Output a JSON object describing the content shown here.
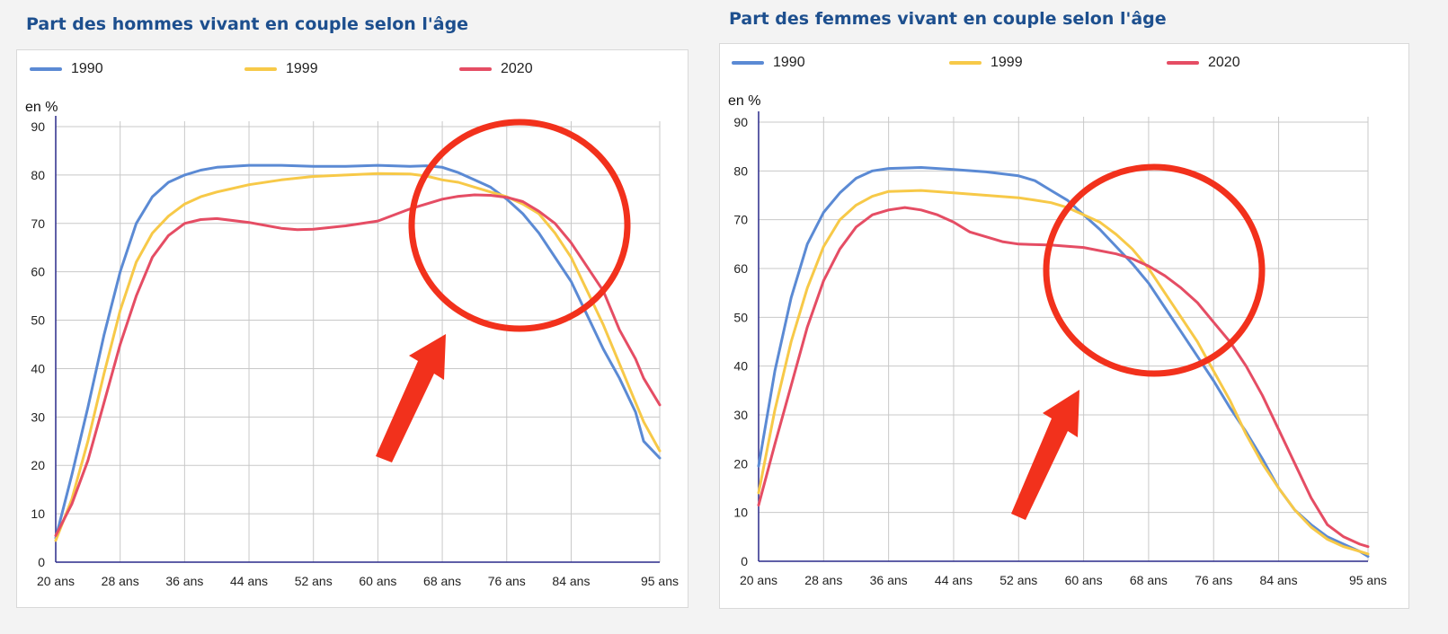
{
  "colors": {
    "s1990": "#5b8ad4",
    "s1999": "#f7c948",
    "s2020": "#e54d64",
    "annotation": "#f2311c"
  },
  "chart_data": [
    {
      "type": "line",
      "title": "Part des hommes vivant en couple selon l'âge",
      "ylabel": "en %",
      "ylim": [
        0,
        90
      ],
      "yticks": [
        "0",
        "10",
        "20",
        "30",
        "40",
        "50",
        "60",
        "70",
        "80",
        "90"
      ],
      "xlim": [
        20,
        95
      ],
      "xticks": [
        "20 ans",
        "28 ans",
        "36 ans",
        "44 ans",
        "52 ans",
        "60 ans",
        "68 ans",
        "76 ans",
        "84 ans",
        "95 ans"
      ],
      "legend": [
        "1990",
        "1999",
        "2020"
      ],
      "grid": true,
      "series": [
        {
          "name": "1990",
          "points": [
            [
              20,
              5
            ],
            [
              22,
              18
            ],
            [
              24,
              32
            ],
            [
              26,
              47
            ],
            [
              28,
              60
            ],
            [
              30,
              70
            ],
            [
              32,
              75.5
            ],
            [
              34,
              78.5
            ],
            [
              36,
              80
            ],
            [
              38,
              81
            ],
            [
              40,
              81.6
            ],
            [
              44,
              82
            ],
            [
              48,
              82
            ],
            [
              52,
              81.8
            ],
            [
              56,
              81.8
            ],
            [
              60,
              82
            ],
            [
              64,
              81.8
            ],
            [
              66,
              81.9
            ],
            [
              68,
              81.6
            ],
            [
              70,
              80.5
            ],
            [
              72,
              79
            ],
            [
              74,
              77.5
            ],
            [
              76,
              75
            ],
            [
              78,
              72
            ],
            [
              80,
              68
            ],
            [
              82,
              63
            ],
            [
              84,
              58
            ],
            [
              86,
              51
            ],
            [
              88,
              44
            ],
            [
              90,
              38
            ],
            [
              92,
              31
            ],
            [
              93,
              25
            ],
            [
              95,
              21.5
            ]
          ]
        },
        {
          "name": "1999",
          "points": [
            [
              20,
              4.5
            ],
            [
              22,
              13
            ],
            [
              24,
              25
            ],
            [
              26,
              39
            ],
            [
              28,
              52
            ],
            [
              30,
              62
            ],
            [
              32,
              68
            ],
            [
              34,
              71.5
            ],
            [
              36,
              74
            ],
            [
              38,
              75.5
            ],
            [
              40,
              76.5
            ],
            [
              44,
              78
            ],
            [
              48,
              79
            ],
            [
              52,
              79.7
            ],
            [
              56,
              80
            ],
            [
              60,
              80.3
            ],
            [
              64,
              80.2
            ],
            [
              66,
              79.8
            ],
            [
              68,
              79
            ],
            [
              70,
              78.5
            ],
            [
              72,
              77.5
            ],
            [
              74,
              76.5
            ],
            [
              76,
              75.5
            ],
            [
              78,
              74
            ],
            [
              80,
              72
            ],
            [
              82,
              68
            ],
            [
              84,
              63
            ],
            [
              86,
              56
            ],
            [
              88,
              49
            ],
            [
              90,
              41
            ],
            [
              92,
              33
            ],
            [
              93,
              29
            ],
            [
              95,
              23
            ]
          ]
        },
        {
          "name": "2020",
          "points": [
            [
              20,
              5.5
            ],
            [
              22,
              12
            ],
            [
              24,
              21
            ],
            [
              26,
              33
            ],
            [
              28,
              45
            ],
            [
              30,
              55
            ],
            [
              32,
              63
            ],
            [
              34,
              67.5
            ],
            [
              36,
              70
            ],
            [
              38,
              70.8
            ],
            [
              40,
              71
            ],
            [
              44,
              70.2
            ],
            [
              48,
              69
            ],
            [
              50,
              68.7
            ],
            [
              52,
              68.8
            ],
            [
              56,
              69.5
            ],
            [
              60,
              70.5
            ],
            [
              64,
              73
            ],
            [
              66,
              74
            ],
            [
              68,
              75
            ],
            [
              70,
              75.6
            ],
            [
              72,
              75.9
            ],
            [
              74,
              75.8
            ],
            [
              76,
              75.4
            ],
            [
              78,
              74.5
            ],
            [
              80,
              72.5
            ],
            [
              82,
              70
            ],
            [
              84,
              66
            ],
            [
              86,
              61
            ],
            [
              88,
              56
            ],
            [
              90,
              48
            ],
            [
              92,
              42
            ],
            [
              93,
              38
            ],
            [
              95,
              32.5
            ]
          ]
        }
      ]
    },
    {
      "type": "line",
      "title": "Part des femmes vivant en couple selon l'âge",
      "ylabel": "en %",
      "ylim": [
        0,
        90
      ],
      "yticks": [
        "0",
        "10",
        "20",
        "30",
        "40",
        "50",
        "60",
        "70",
        "80",
        "90"
      ],
      "xlim": [
        20,
        95
      ],
      "xticks": [
        "20 ans",
        "28 ans",
        "36 ans",
        "44 ans",
        "52 ans",
        "60 ans",
        "68 ans",
        "76 ans",
        "84 ans",
        "95 ans"
      ],
      "legend": [
        "1990",
        "1999",
        "2020"
      ],
      "grid": true,
      "series": [
        {
          "name": "1990",
          "points": [
            [
              20,
              19.5
            ],
            [
              22,
              39
            ],
            [
              24,
              54
            ],
            [
              26,
              65
            ],
            [
              28,
              71.5
            ],
            [
              30,
              75.5
            ],
            [
              32,
              78.5
            ],
            [
              34,
              80
            ],
            [
              36,
              80.5
            ],
            [
              40,
              80.7
            ],
            [
              44,
              80.3
            ],
            [
              48,
              79.8
            ],
            [
              52,
              79
            ],
            [
              54,
              78
            ],
            [
              56,
              76
            ],
            [
              58,
              74
            ],
            [
              60,
              71
            ],
            [
              62,
              68
            ],
            [
              64,
              64.5
            ],
            [
              66,
              61
            ],
            [
              68,
              57
            ],
            [
              70,
              52
            ],
            [
              72,
              47
            ],
            [
              74,
              42
            ],
            [
              76,
              37
            ],
            [
              78,
              31.5
            ],
            [
              80,
              26.5
            ],
            [
              82,
              21
            ],
            [
              84,
              15
            ],
            [
              86,
              10.5
            ],
            [
              88,
              7.5
            ],
            [
              90,
              5
            ],
            [
              92,
              3.5
            ],
            [
              94,
              2
            ],
            [
              95,
              1
            ]
          ]
        },
        {
          "name": "1999",
          "points": [
            [
              20,
              14
            ],
            [
              22,
              31
            ],
            [
              24,
              45
            ],
            [
              26,
              56
            ],
            [
              28,
              64.5
            ],
            [
              30,
              70
            ],
            [
              32,
              73
            ],
            [
              34,
              74.8
            ],
            [
              36,
              75.8
            ],
            [
              40,
              76
            ],
            [
              44,
              75.5
            ],
            [
              48,
              75
            ],
            [
              52,
              74.5
            ],
            [
              54,
              74
            ],
            [
              56,
              73.5
            ],
            [
              58,
              72.5
            ],
            [
              60,
              71
            ],
            [
              62,
              69.5
            ],
            [
              64,
              67
            ],
            [
              66,
              64
            ],
            [
              68,
              60
            ],
            [
              70,
              55
            ],
            [
              72,
              50
            ],
            [
              74,
              45
            ],
            [
              76,
              39
            ],
            [
              78,
              33
            ],
            [
              80,
              26
            ],
            [
              82,
              20
            ],
            [
              84,
              15
            ],
            [
              86,
              10.5
            ],
            [
              88,
              7
            ],
            [
              90,
              4.5
            ],
            [
              92,
              3
            ],
            [
              94,
              2
            ],
            [
              95,
              1.5
            ]
          ]
        },
        {
          "name": "2020",
          "points": [
            [
              20,
              11.5
            ],
            [
              22,
              24
            ],
            [
              24,
              36
            ],
            [
              26,
              48
            ],
            [
              28,
              57.5
            ],
            [
              30,
              64
            ],
            [
              32,
              68.5
            ],
            [
              34,
              71
            ],
            [
              36,
              72
            ],
            [
              38,
              72.5
            ],
            [
              40,
              72
            ],
            [
              42,
              71
            ],
            [
              44,
              69.5
            ],
            [
              46,
              67.5
            ],
            [
              48,
              66.5
            ],
            [
              50,
              65.5
            ],
            [
              52,
              65
            ],
            [
              56,
              64.8
            ],
            [
              60,
              64.3
            ],
            [
              64,
              63
            ],
            [
              66,
              62
            ],
            [
              68,
              60.5
            ],
            [
              70,
              58.5
            ],
            [
              72,
              56
            ],
            [
              74,
              53
            ],
            [
              76,
              49
            ],
            [
              78,
              45
            ],
            [
              80,
              40
            ],
            [
              82,
              34
            ],
            [
              84,
              27
            ],
            [
              86,
              20
            ],
            [
              88,
              13
            ],
            [
              90,
              7.5
            ],
            [
              92,
              5
            ],
            [
              94,
              3.5
            ],
            [
              95,
              3
            ]
          ]
        }
      ]
    }
  ]
}
